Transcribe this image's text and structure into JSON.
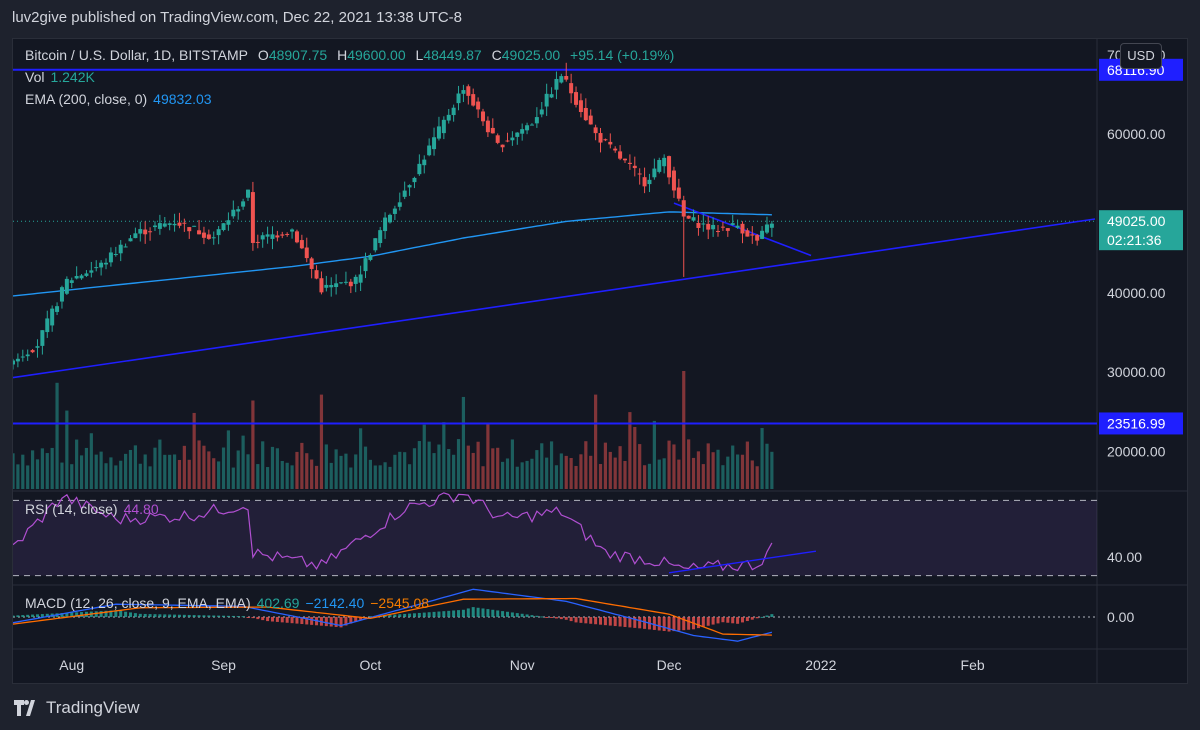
{
  "header": {
    "published_text": "luv2give published on TradingView.com, Dec 22, 2021 13:38 UTC-8"
  },
  "legend": {
    "symbol": "Bitcoin / U.S. Dollar, 1D, BITSTAMP",
    "o_label": "O",
    "o_value": "48907.75",
    "h_label": "H",
    "h_value": "49600.00",
    "l_label": "L",
    "l_value": "48449.87",
    "c_label": "C",
    "c_value": "49025.00",
    "change": "+95.14 (+0.19%)",
    "vol_label": "Vol",
    "vol_value": "1.242K",
    "ema_label": "EMA (200, close, 0)",
    "ema_value": "49832.03",
    "rsi_label": "RSI (14, close)",
    "rsi_value": "44.80",
    "macd_label": "MACD (12, 26, close, 9, EMA, EMA)",
    "macd_value": "402.69",
    "macd_signal": "−2142.40",
    "macd_hist": "−2545.08"
  },
  "currency_button": "USD",
  "footer": {
    "brand": "TradingView"
  },
  "colors": {
    "up": "#26a69a",
    "down": "#ef5350",
    "ema": "#2196f3",
    "drawing": "#1f1fff",
    "rsi": "#b04fd1",
    "macd": "#2962ff",
    "signal": "#ff6d00"
  },
  "chart_data": {
    "type": "candlestick",
    "x_range": [
      "2021-07-20",
      "2022-02-26"
    ],
    "y_range": [
      15000,
      72000
    ],
    "x_ticks": [
      {
        "date": "2021-08-01",
        "label": "Aug"
      },
      {
        "date": "2021-09-01",
        "label": "Sep"
      },
      {
        "date": "2021-10-01",
        "label": "Oct"
      },
      {
        "date": "2021-11-01",
        "label": "Nov"
      },
      {
        "date": "2021-12-01",
        "label": "Dec"
      },
      {
        "date": "2022-01-01",
        "label": "2022"
      },
      {
        "date": "2022-02-01",
        "label": "Feb"
      }
    ],
    "y_ticks": [
      {
        "value": 70000,
        "label": "70000.00"
      },
      {
        "value": 60000,
        "label": "60000.00"
      },
      {
        "value": 40000,
        "label": "40000.00"
      },
      {
        "value": 30000,
        "label": "30000.00"
      },
      {
        "value": 20000,
        "label": "20000.00"
      }
    ],
    "price_labels": [
      {
        "value": 68116.9,
        "label": "68116.90",
        "kind": "line"
      },
      {
        "value": 49025.0,
        "label": "49025.00",
        "sub": "02:21:36",
        "kind": "last"
      },
      {
        "value": 23516.99,
        "label": "23516.99",
        "kind": "line"
      }
    ],
    "horizontal_lines": [
      68116.9,
      23516.99
    ],
    "last_price": 49025.0,
    "trend_lines": [
      {
        "from": [
          "2021-07-20",
          29300
        ],
        "to": [
          "2022-02-26",
          49300
        ]
      },
      {
        "from": [
          "2021-12-02",
          51300
        ],
        "to": [
          "2021-12-30",
          44700
        ]
      }
    ],
    "close_keypoints": [
      [
        "2021-07-20",
        31500
      ],
      [
        "2021-07-25",
        33500
      ],
      [
        "2021-07-31",
        41500
      ],
      [
        "2021-08-07",
        43500
      ],
      [
        "2021-08-14",
        47500
      ],
      [
        "2021-08-22",
        49000
      ],
      [
        "2021-08-30",
        47000
      ],
      [
        "2021-09-06",
        52500
      ],
      [
        "2021-09-07",
        46500
      ],
      [
        "2021-09-15",
        48000
      ],
      [
        "2021-09-21",
        40500
      ],
      [
        "2021-09-28",
        41500
      ],
      [
        "2021-10-04",
        49000
      ],
      [
        "2021-10-10",
        55000
      ],
      [
        "2021-10-16",
        61500
      ],
      [
        "2021-10-20",
        66000
      ],
      [
        "2021-10-27",
        58500
      ],
      [
        "2021-11-03",
        61500
      ],
      [
        "2021-11-09",
        67500
      ],
      [
        "2021-11-16",
        60000
      ],
      [
        "2021-11-26",
        54000
      ],
      [
        "2021-11-30",
        57000
      ],
      [
        "2021-12-04",
        49500
      ],
      [
        "2021-12-10",
        48000
      ],
      [
        "2021-12-15",
        48500
      ],
      [
        "2021-12-19",
        46500
      ],
      [
        "2021-12-22",
        49025
      ]
    ],
    "ema_keypoints": [
      [
        "2021-07-20",
        39600
      ],
      [
        "2021-08-15",
        41300
      ],
      [
        "2021-09-15",
        43300
      ],
      [
        "2021-10-01",
        44600
      ],
      [
        "2021-10-20",
        46900
      ],
      [
        "2021-11-10",
        49000
      ],
      [
        "2021-12-01",
        50200
      ],
      [
        "2021-12-22",
        49832
      ]
    ],
    "volume_spikes": [
      [
        "2021-07-29",
        0.9
      ],
      [
        "2021-09-07",
        0.75
      ],
      [
        "2021-09-21",
        0.8
      ],
      [
        "2021-10-20",
        0.78
      ],
      [
        "2021-11-16",
        0.8
      ],
      [
        "2021-12-04",
        1.0
      ]
    ],
    "rsi": {
      "level": 40,
      "level_label": "40.00",
      "band": [
        30,
        70
      ],
      "y_range": [
        25,
        75
      ],
      "keypoints": [
        [
          "2021-07-20",
          45
        ],
        [
          "2021-07-30",
          72
        ],
        [
          "2021-08-10",
          60
        ],
        [
          "2021-08-25",
          62
        ],
        [
          "2021-09-06",
          68
        ],
        [
          "2021-09-07",
          42
        ],
        [
          "2021-09-21",
          35
        ],
        [
          "2021-10-02",
          55
        ],
        [
          "2021-10-08",
          66
        ],
        [
          "2021-10-20",
          74
        ],
        [
          "2021-10-28",
          60
        ],
        [
          "2021-11-09",
          64
        ],
        [
          "2021-11-18",
          42
        ],
        [
          "2021-11-28",
          38
        ],
        [
          "2021-12-04",
          33
        ],
        [
          "2021-12-12",
          35
        ],
        [
          "2021-12-19",
          36
        ],
        [
          "2021-12-22",
          44.8
        ]
      ],
      "trend": {
        "from": [
          "2021-12-01",
          31.5
        ],
        "to": [
          "2021-12-31",
          43
        ]
      }
    },
    "macd": {
      "zero_label": "0.00",
      "y_range": [
        -4500,
        4500
      ],
      "macd_keypoints": [
        [
          "2021-07-20",
          -800
        ],
        [
          "2021-08-10",
          1800
        ],
        [
          "2021-09-05",
          1500
        ],
        [
          "2021-09-25",
          -1200
        ],
        [
          "2021-10-10",
          1600
        ],
        [
          "2021-10-22",
          3900
        ],
        [
          "2021-11-10",
          2200
        ],
        [
          "2021-11-25",
          -500
        ],
        [
          "2021-12-06",
          -2600
        ],
        [
          "2021-12-15",
          -3400
        ],
        [
          "2021-12-22",
          -2142
        ]
      ],
      "signal_keypoints": [
        [
          "2021-07-20",
          -1000
        ],
        [
          "2021-08-15",
          1300
        ],
        [
          "2021-09-10",
          1400
        ],
        [
          "2021-10-01",
          -200
        ],
        [
          "2021-10-20",
          2500
        ],
        [
          "2021-11-12",
          2600
        ],
        [
          "2021-12-01",
          400
        ],
        [
          "2021-12-12",
          -2400
        ],
        [
          "2021-12-22",
          -2545
        ]
      ]
    }
  }
}
